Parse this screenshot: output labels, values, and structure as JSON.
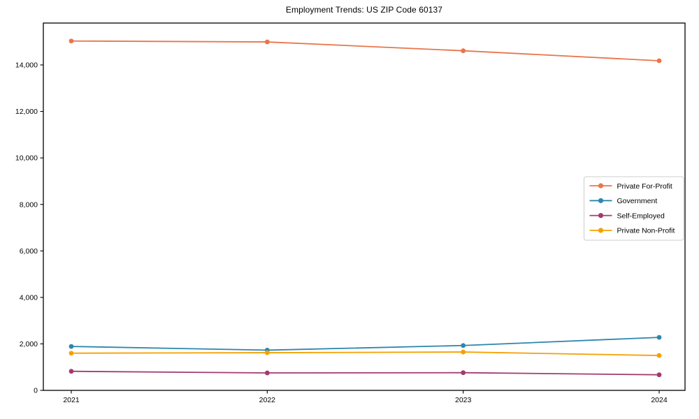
{
  "chart_data": {
    "type": "line",
    "title": "Employment Trends: US ZIP Code 60137",
    "xlabel": "",
    "ylabel": "",
    "x_tick_labels": [
      "2021",
      "2022",
      "2023",
      "2024"
    ],
    "x": [
      2021,
      2022,
      2023,
      2024
    ],
    "yticks": [
      0,
      2000,
      4000,
      6000,
      8000,
      10000,
      12000,
      14000
    ],
    "ytick_labels": [
      "0",
      "2,000",
      "4,000",
      "6,000",
      "8,000",
      "10,000",
      "12,000",
      "14,000"
    ],
    "ylim": [
      0,
      15800
    ],
    "grid": false,
    "marker": "circle",
    "legend_position": "center-right",
    "series": [
      {
        "name": "Private For-Profit",
        "color": "#E8764B",
        "values": [
          15030,
          14990,
          14610,
          14180
        ]
      },
      {
        "name": "Government",
        "color": "#2E86AB",
        "values": [
          1890,
          1730,
          1930,
          2280
        ]
      },
      {
        "name": "Self-Employed",
        "color": "#A23B72",
        "values": [
          820,
          750,
          760,
          670
        ]
      },
      {
        "name": "Private Non-Profit",
        "color": "#F5A002",
        "values": [
          1600,
          1620,
          1650,
          1500
        ]
      }
    ],
    "colors": {
      "axis": "#000000",
      "tick_label": "#000000",
      "legend_border": "#cccccc",
      "background": "#ffffff"
    }
  }
}
